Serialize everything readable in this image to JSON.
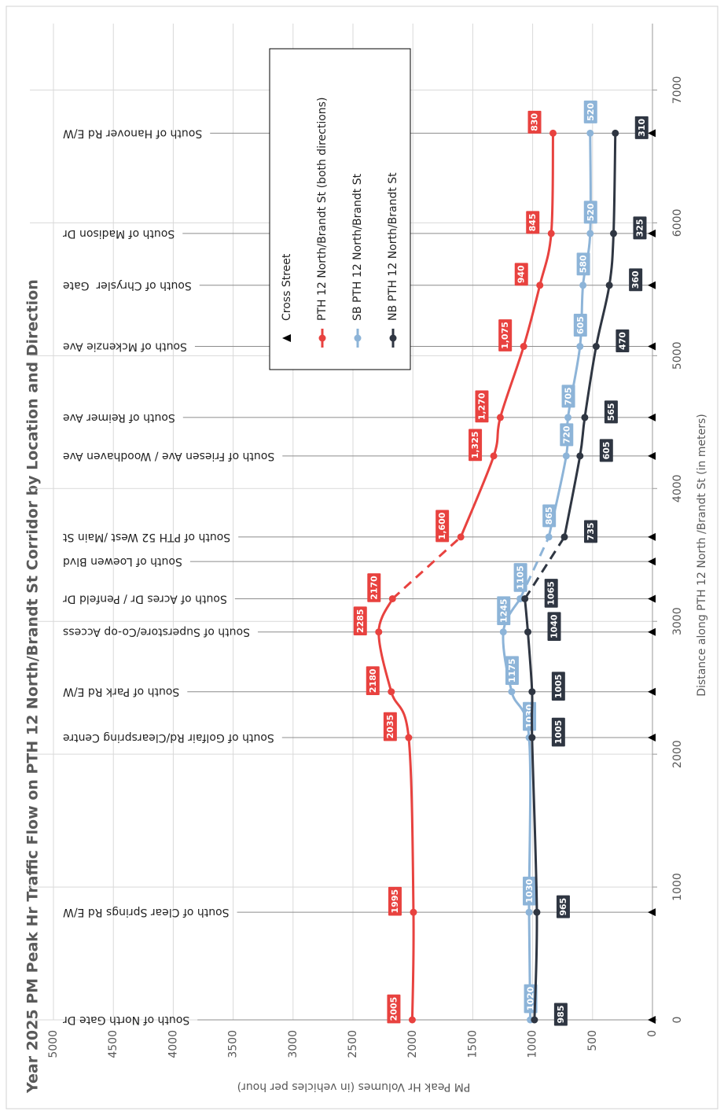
{
  "chart_data": {
    "type": "line",
    "title": "Year 2025 PM Peak Hr Traffic Flow on PTH 12 North/Brandt St Corridor by Location and Direction",
    "x_label": "Distance along PTH 12 North /Brandt St (in meters)",
    "y_label": "PM Peak Hr Volumes (in vehicles per hour)",
    "cross_street_legend": "Cross Street",
    "cross_streets": [
      "South of North Gate Dr",
      "South of Clear Springs Rd E/W",
      "South of Golfair Rd/Clearspring Centre",
      "South of Park Rd E/W",
      "South of Superstore/Co-op Access",
      "South of Acres Dr / Penfeld Dr",
      "South of Loewen Blvd",
      "South of PTH 52 West /Main St",
      "South of Friesen Ave / Woodhaven Ave",
      "South of Reimer Ave",
      "South of Mckenzie Ave",
      "South of Chrysler  Gate",
      "South of Madison Dr",
      "South of Hanover Rd E/W"
    ],
    "x": [
      0,
      810,
      2125,
      2470,
      2920,
      3170,
      3450,
      3635,
      4245,
      4535,
      5070,
      5530,
      5920,
      6675
    ],
    "series": [
      {
        "name": "PTH 12 North/Brandt St (both directions)",
        "color": "#e8423f",
        "values": [
          2005,
          1995,
          2035,
          2180,
          2285,
          2170,
          null,
          1600,
          1325,
          1270,
          1075,
          940,
          845,
          830
        ],
        "value_labels": [
          "2005",
          "1995",
          "2035",
          "2180",
          "2285",
          "2170",
          null,
          "1,600",
          "1,325",
          "1,270",
          "1,075",
          "940",
          "845",
          "830"
        ]
      },
      {
        "name": "SB PTH 12 North/Brandt St",
        "color": "#8db4d8",
        "values": [
          1020,
          1030,
          1030,
          1175,
          1245,
          1105,
          null,
          865,
          720,
          705,
          605,
          580,
          520,
          520
        ]
      },
      {
        "name": "NB PTH 12 North/Brandt St",
        "color": "#2f3642",
        "values": [
          985,
          965,
          1005,
          1005,
          1040,
          1065,
          null,
          735,
          605,
          565,
          470,
          360,
          325,
          310
        ]
      }
    ],
    "xlim": [
      0,
      7500
    ],
    "xticks": [
      0,
      1000,
      2000,
      3000,
      4000,
      5000,
      6000,
      7000
    ],
    "ylim": [
      0,
      5000
    ],
    "yticks": [
      0,
      500,
      1000,
      1500,
      2000,
      2500,
      3000,
      3500,
      4000,
      4500,
      5000
    ],
    "grid": true
  }
}
